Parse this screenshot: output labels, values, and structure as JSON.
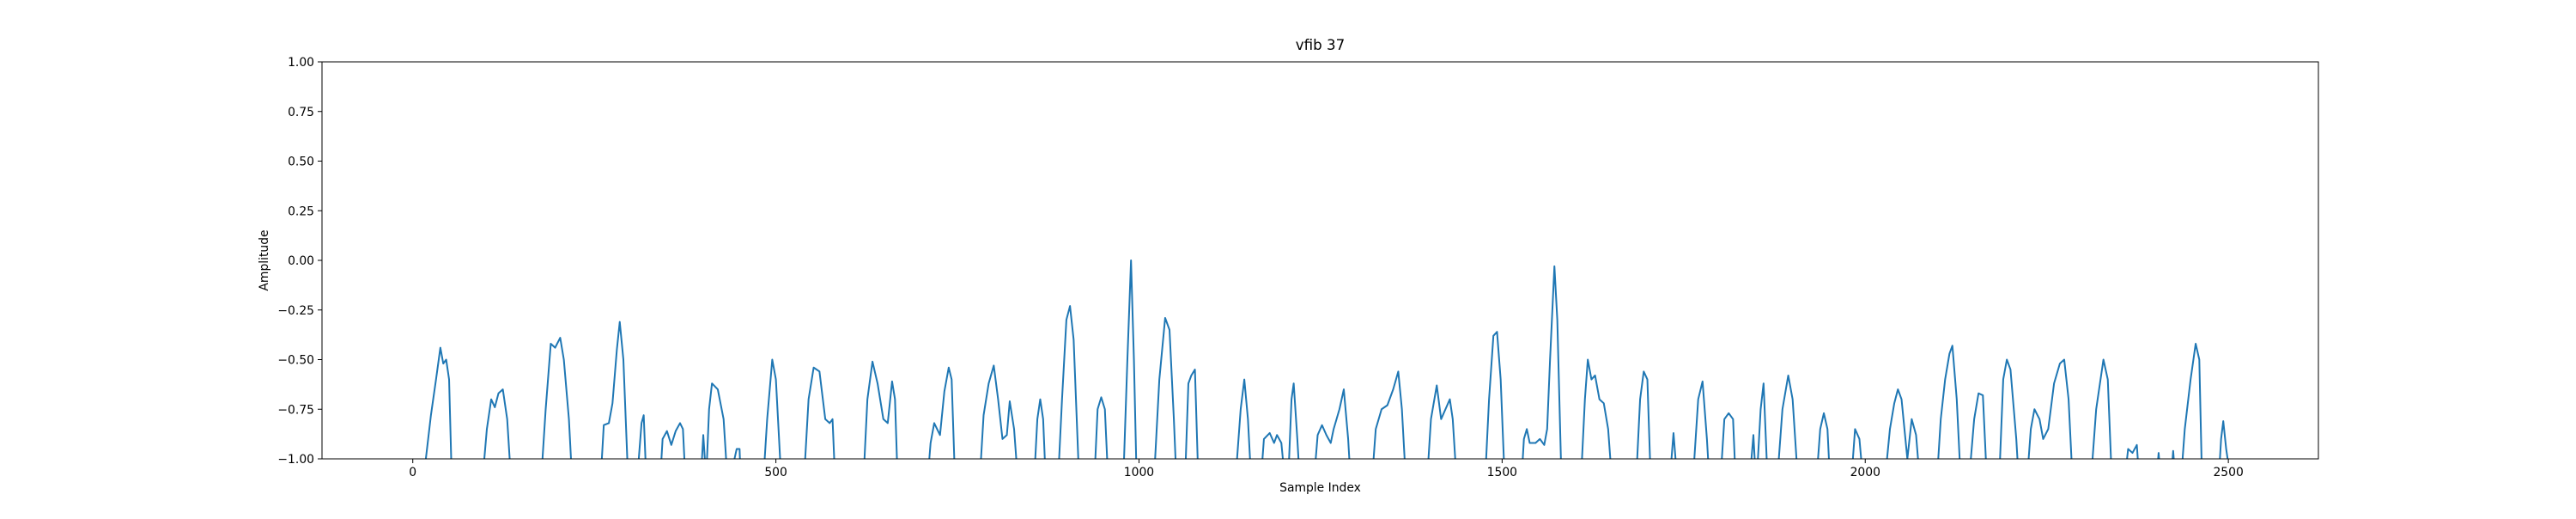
{
  "chart_data": {
    "type": "line",
    "title": "vfib 37",
    "xlabel": "Sample Index",
    "ylabel": "Amplitude",
    "color": "#1f77b4",
    "xlim": [
      -125,
      2624
    ],
    "ylim": [
      -1,
      1
    ],
    "xticks": [
      0,
      500,
      1000,
      1500,
      2000,
      2500
    ],
    "yticks": [
      {
        "value": -1,
        "label": "−1.00"
      },
      {
        "value": -0.75,
        "label": "−0.75"
      },
      {
        "value": -0.5,
        "label": "−0.50"
      },
      {
        "value": -0.25,
        "label": "−0.25"
      },
      {
        "value": 0,
        "label": "0.00"
      },
      {
        "value": 0.25,
        "label": "0.25"
      },
      {
        "value": 0.5,
        "label": "0.50"
      },
      {
        "value": 0.75,
        "label": "0.75"
      },
      {
        "value": 1,
        "label": "1.00"
      }
    ],
    "x": [
      0,
      18,
      25,
      32,
      38,
      42,
      46,
      50,
      54,
      95,
      102,
      108,
      113,
      118,
      124,
      130,
      136,
      176,
      183,
      190,
      196,
      203,
      208,
      215,
      220,
      258,
      263,
      270,
      275,
      281,
      285,
      290,
      297,
      308,
      315,
      318,
      322,
      340,
      344,
      350,
      356,
      362,
      368,
      372,
      376,
      396,
      400,
      404,
      408,
      412,
      420,
      428,
      434,
      446,
      450,
      452,
      482,
      488,
      495,
      500,
      508,
      538,
      545,
      552,
      560,
      568,
      574,
      578,
      582,
      620,
      626,
      633,
      640,
      648,
      654,
      660,
      664,
      668,
      708,
      713,
      718,
      726,
      732,
      738,
      742,
      747,
      780,
      786,
      793,
      800,
      806,
      812,
      818,
      822,
      828,
      834,
      855,
      860,
      864,
      868,
      872,
      888,
      894,
      900,
      905,
      910,
      918,
      938,
      943,
      948,
      953,
      958,
      978,
      984,
      989,
      993,
      997,
      1020,
      1028,
      1036,
      1042,
      1048,
      1052,
      1063,
      1068,
      1072,
      1077,
      1082,
      1132,
      1140,
      1145,
      1150,
      1155,
      1167,
      1172,
      1180,
      1186,
      1190,
      1196,
      1202,
      1205,
      1210,
      1213,
      1218,
      1222,
      1240,
      1246,
      1252,
      1258,
      1264,
      1268,
      1276,
      1282,
      1288,
      1292,
      1320,
      1326,
      1334,
      1342,
      1350,
      1357,
      1362,
      1368,
      1396,
      1402,
      1410,
      1416,
      1422,
      1428,
      1432,
      1438,
      1476,
      1482,
      1488,
      1493,
      1498,
      1504,
      1526,
      1530,
      1534,
      1538,
      1546,
      1552,
      1558,
      1562,
      1566,
      1572,
      1576,
      1582,
      1608,
      1614,
      1618,
      1623,
      1628,
      1634,
      1640,
      1646,
      1652,
      1684,
      1690,
      1695,
      1700,
      1705,
      1730,
      1736,
      1742,
      1762,
      1770,
      1776,
      1782,
      1786,
      1800,
      1806,
      1812,
      1818,
      1822,
      1840,
      1846,
      1850,
      1856,
      1860,
      1866,
      1878,
      1886,
      1894,
      1900,
      1908,
      1932,
      1938,
      1943,
      1948,
      1952,
      1980,
      1986,
      1992,
      1998,
      2026,
      2034,
      2040,
      2045,
      2050,
      2058,
      2064,
      2070,
      2076,
      2098,
      2104,
      2110,
      2116,
      2120,
      2126,
      2132,
      2142,
      2150,
      2156,
      2162,
      2168,
      2184,
      2190,
      2195,
      2200,
      2208,
      2212,
      2222,
      2228,
      2233,
      2240,
      2245,
      2252,
      2260,
      2268,
      2274,
      2280,
      2286,
      2310,
      2318,
      2328,
      2334,
      2340,
      2356,
      2362,
      2368,
      2374,
      2378,
      2400,
      2404,
      2408,
      2420,
      2424,
      2428,
      2434,
      2440,
      2448,
      2455,
      2460,
      2464,
      2486,
      2490,
      2493,
      2497,
      2499
    ],
    "values": [
      -1.15,
      -1.0,
      -0.78,
      -0.6,
      -0.44,
      -0.52,
      -0.5,
      -0.6,
      -1.15,
      -1.15,
      -0.85,
      -0.7,
      -0.74,
      -0.67,
      -0.65,
      -0.8,
      -1.15,
      -1.15,
      -0.75,
      -0.42,
      -0.44,
      -0.39,
      -0.5,
      -0.8,
      -1.15,
      -1.15,
      -0.83,
      -0.82,
      -0.72,
      -0.45,
      -0.31,
      -0.5,
      -1.15,
      -1.15,
      -0.82,
      -0.78,
      -1.15,
      -1.15,
      -0.9,
      -0.86,
      -0.93,
      -0.86,
      -0.82,
      -0.85,
      -1.15,
      -1.15,
      -0.88,
      -1.1,
      -0.75,
      -0.62,
      -0.65,
      -0.8,
      -1.15,
      -0.95,
      -0.95,
      -1.15,
      -1.15,
      -0.8,
      -0.5,
      -0.6,
      -1.15,
      -1.15,
      -0.7,
      -0.54,
      -0.56,
      -0.8,
      -0.82,
      -0.8,
      -1.15,
      -1.15,
      -0.7,
      -0.51,
      -0.62,
      -0.8,
      -0.82,
      -0.61,
      -0.7,
      -1.15,
      -1.15,
      -0.92,
      -0.82,
      -0.88,
      -0.66,
      -0.54,
      -0.6,
      -1.15,
      -1.15,
      -0.78,
      -0.62,
      -0.53,
      -0.7,
      -0.9,
      -0.88,
      -0.71,
      -0.85,
      -1.15,
      -1.15,
      -0.8,
      -0.7,
      -0.8,
      -1.15,
      -1.15,
      -0.7,
      -0.3,
      -0.23,
      -0.4,
      -1.15,
      -1.15,
      -0.75,
      -0.69,
      -0.75,
      -1.15,
      -1.15,
      -0.5,
      0.0,
      -0.5,
      -1.15,
      -1.15,
      -0.6,
      -0.29,
      -0.35,
      -0.8,
      -1.15,
      -1.15,
      -0.62,
      -0.58,
      -0.55,
      -1.15,
      -1.15,
      -0.75,
      -0.6,
      -0.8,
      -1.15,
      -1.15,
      -0.9,
      -0.87,
      -0.92,
      -0.88,
      -0.92,
      -1.15,
      -1.15,
      -0.7,
      -0.62,
      -0.9,
      -1.15,
      -1.15,
      -0.88,
      -0.83,
      -0.88,
      -0.92,
      -0.85,
      -0.75,
      -0.65,
      -0.9,
      -1.15,
      -1.15,
      -0.85,
      -0.75,
      -0.73,
      -0.65,
      -0.56,
      -0.75,
      -1.15,
      -1.15,
      -0.8,
      -0.63,
      -0.8,
      -0.75,
      -0.7,
      -0.8,
      -1.15,
      -1.15,
      -0.7,
      -0.38,
      -0.36,
      -0.6,
      -1.15,
      -1.15,
      -0.9,
      -0.85,
      -0.92,
      -0.92,
      -0.9,
      -0.93,
      -0.85,
      -0.5,
      -0.03,
      -0.3,
      -1.15,
      -1.15,
      -0.7,
      -0.5,
      -0.6,
      -0.58,
      -0.7,
      -0.72,
      -0.85,
      -1.15,
      -1.15,
      -0.7,
      -0.56,
      -0.6,
      -1.15,
      -1.15,
      -0.87,
      -1.15,
      -1.15,
      -0.7,
      -0.61,
      -0.9,
      -1.15,
      -1.15,
      -0.8,
      -0.77,
      -0.8,
      -1.15,
      -1.15,
      -0.88,
      -1.15,
      -0.75,
      -0.62,
      -1.15,
      -1.15,
      -0.75,
      -0.58,
      -0.7,
      -1.15,
      -1.15,
      -0.85,
      -0.77,
      -0.85,
      -1.15,
      -1.15,
      -0.85,
      -0.9,
      -1.15,
      -1.15,
      -0.85,
      -0.72,
      -0.65,
      -0.7,
      -1.0,
      -0.8,
      -0.88,
      -1.15,
      -1.15,
      -0.8,
      -0.6,
      -0.47,
      -0.43,
      -0.7,
      -1.15,
      -1.15,
      -0.8,
      -0.67,
      -0.68,
      -1.15,
      -1.15,
      -0.6,
      -0.5,
      -0.55,
      -0.9,
      -1.15,
      -1.15,
      -0.85,
      -0.75,
      -0.8,
      -0.9,
      -0.85,
      -0.62,
      -0.52,
      -0.5,
      -0.7,
      -1.15,
      -1.15,
      -0.75,
      -0.5,
      -0.6,
      -1.15,
      -1.15,
      -0.95,
      -0.97,
      -0.93,
      -1.15,
      -1.15,
      -0.97,
      -1.15,
      -1.15,
      -0.96,
      -1.15,
      -1.15,
      -0.85,
      -0.6,
      -0.42,
      -0.5,
      -1.15,
      -1.15,
      -0.9,
      -0.81,
      -0.95,
      -1.0
    ]
  }
}
